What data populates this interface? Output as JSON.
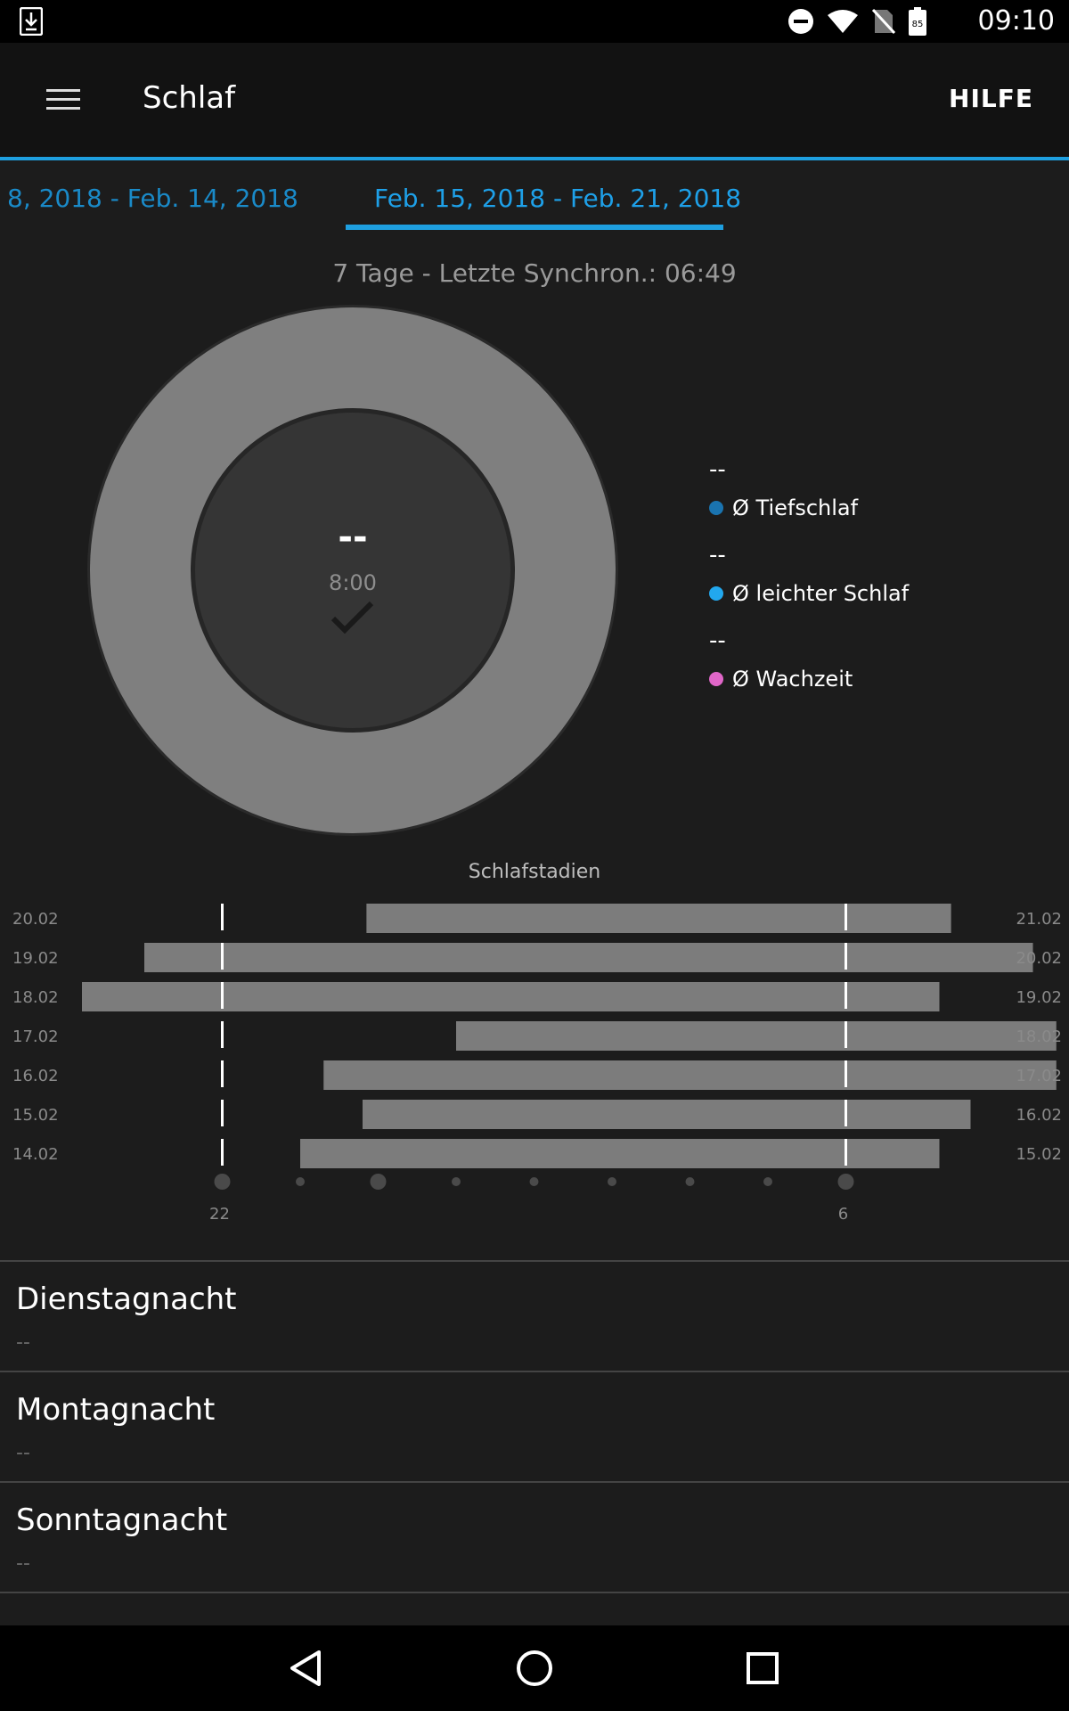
{
  "status_bar": {
    "time": "09:10",
    "battery_level": "85",
    "icons": [
      "download-icon",
      "do-not-disturb-icon",
      "wifi-icon",
      "no-sim-icon",
      "battery-icon"
    ]
  },
  "app_bar": {
    "title": "Schlaf",
    "help_label": "HILFE",
    "menu_icon": "hamburger-menu-icon"
  },
  "tabs": {
    "previous": "8, 2018 - Feb. 14, 2018",
    "current": "Feb. 15, 2018 - Feb. 21, 2018"
  },
  "sync_text": "7 Tage - Letzte Synchron.: 06:49",
  "donut": {
    "center_value": "--",
    "goal": "8:00",
    "goal_icon": "checkmark-icon"
  },
  "legend": [
    {
      "value": "--",
      "label": "Ø Tiefschlaf",
      "color": "#1a74b0"
    },
    {
      "value": "--",
      "label": "Ø leichter Schlaf",
      "color": "#22a8ee"
    },
    {
      "value": "--",
      "label": "Ø Wachzeit",
      "color": "#e066c8"
    }
  ],
  "chart_data": {
    "type": "bar",
    "title": "Schlafstadien",
    "start_dates": [
      "20.02",
      "19.02",
      "18.02",
      "17.02",
      "16.02",
      "15.02",
      "14.02"
    ],
    "end_dates": [
      "21.02",
      "20.02",
      "19.02",
      "18.02",
      "17.02",
      "16.02",
      "15.02"
    ],
    "x_tick_labels": [
      "22",
      "6"
    ],
    "xlim": [
      20.2,
      8.1
    ],
    "bar_color": "#7c7c7c",
    "reference_lines": [
      22,
      6
    ],
    "series": [
      {
        "start": 23.85,
        "end": 7.35
      },
      {
        "start": 21.0,
        "end": 8.4
      },
      {
        "start": 20.2,
        "end": 7.2
      },
      {
        "start": 1.0,
        "end": 8.7
      },
      {
        "start": 23.3,
        "end": 8.7
      },
      {
        "start": 23.8,
        "end": 7.6
      },
      {
        "start": 23.0,
        "end": 7.2
      }
    ]
  },
  "list": [
    {
      "title": "Dienstagnacht",
      "subtitle": "--"
    },
    {
      "title": "Montagnacht",
      "subtitle": "--"
    },
    {
      "title": "Sonntagnacht",
      "subtitle": "--"
    }
  ],
  "nav_bar": {
    "back_icon": "back-triangle-icon",
    "home_icon": "home-circle-icon",
    "recents_icon": "recents-square-icon"
  }
}
